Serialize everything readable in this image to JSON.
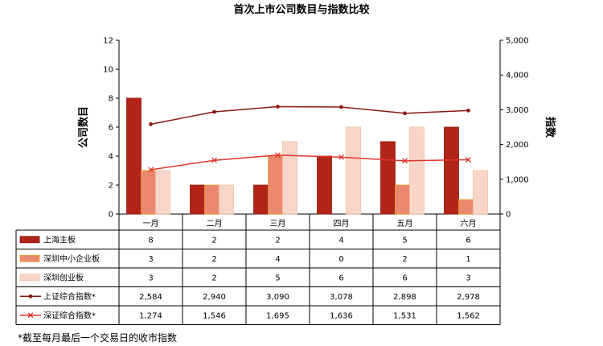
{
  "chart_data": {
    "type": "bar",
    "title": "首次上市公司数目与指数比较",
    "categories": [
      "一月",
      "二月",
      "三月",
      "四月",
      "五月",
      "六月"
    ],
    "series": [
      {
        "name": "上海主板",
        "kind": "bar",
        "axis": "left",
        "color": "#b22418",
        "values": [
          8,
          2,
          2,
          4,
          5,
          6
        ],
        "labels": [
          "8",
          "2",
          "2",
          "4",
          "5",
          "6"
        ]
      },
      {
        "name": "深圳中小企业板",
        "kind": "bar",
        "axis": "left",
        "color": "#ec8870",
        "values": [
          3,
          2,
          4,
          0,
          2,
          1
        ],
        "labels": [
          "3",
          "2",
          "4",
          "0",
          "2",
          "1"
        ]
      },
      {
        "name": "深圳创业板",
        "kind": "bar",
        "axis": "left",
        "color": "#f8d5c8",
        "values": [
          3,
          2,
          5,
          6,
          6,
          3
        ],
        "labels": [
          "3",
          "2",
          "5",
          "6",
          "6",
          "3"
        ]
      },
      {
        "name": "上证综合指数*",
        "kind": "line",
        "axis": "right",
        "color": "#8b1a12",
        "marker": "dot",
        "values": [
          2584,
          2940,
          3090,
          3078,
          2898,
          2978
        ],
        "labels": [
          "2,584",
          "2,940",
          "3,090",
          "3,078",
          "2,898",
          "2,978"
        ]
      },
      {
        "name": "深证综合指数*",
        "kind": "line",
        "axis": "right",
        "color": "#e0362c",
        "marker": "x",
        "values": [
          1274,
          1546,
          1695,
          1636,
          1531,
          1562
        ],
        "labels": [
          "1,274",
          "1,546",
          "1,695",
          "1,636",
          "1,531",
          "1,562"
        ]
      }
    ],
    "ylabel": "公司数目",
    "ylim": [
      0,
      12
    ],
    "yticks": [
      "0",
      "2",
      "4",
      "6",
      "8",
      "10",
      "12"
    ],
    "y2label": "指数",
    "y2lim": [
      0,
      5000
    ],
    "y2ticks": [
      "0",
      "1,000",
      "2,000",
      "3,000",
      "4,000",
      "5,000"
    ],
    "legend": "data-table-left",
    "grid": false
  },
  "footnote": "*截至每月最后一个交易日的收市指数"
}
